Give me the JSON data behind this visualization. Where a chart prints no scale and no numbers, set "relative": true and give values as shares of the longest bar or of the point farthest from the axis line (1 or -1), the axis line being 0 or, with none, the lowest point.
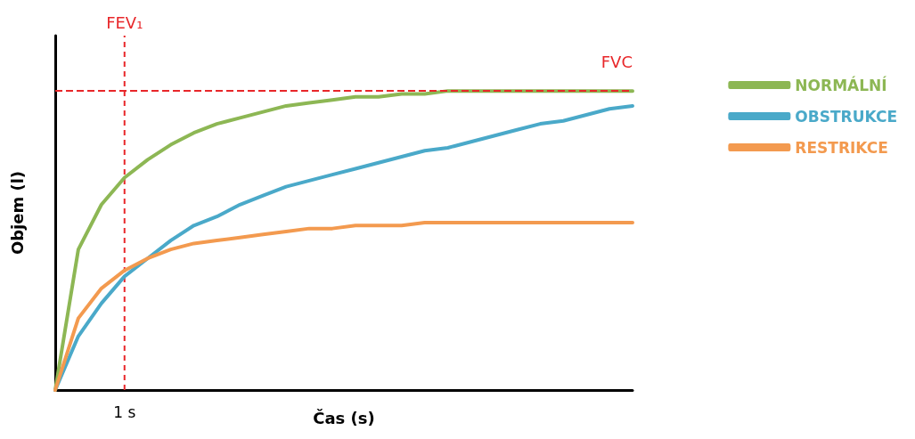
{
  "chart_data": {
    "type": "line",
    "relative": true,
    "xlabel": "Čas (s)",
    "ylabel": "Objem (l)",
    "grid": false,
    "legend": "right",
    "marker": "none",
    "line_style": "solid",
    "annotations": [
      "FEV₁",
      "1 s"
    ],
    "categories": [
      null,
      null,
      null,
      null,
      null,
      null,
      null,
      null,
      null,
      null,
      null,
      null,
      null,
      null,
      null,
      null,
      null,
      null,
      null,
      null,
      null,
      null,
      null,
      null,
      null,
      null
    ],
    "series": [
      {
        "name": "NORMÁLNÍ",
        "color": "#8db754",
        "values": [
          0,
          0.47,
          0.62,
          0.71,
          0.77,
          0.82,
          0.86,
          0.89,
          0.91,
          0.93,
          0.95,
          0.96,
          0.97,
          0.98,
          0.98,
          0.99,
          0.99,
          1,
          1,
          1,
          1,
          1,
          1,
          1,
          1,
          1
        ]
      },
      {
        "name": "OBSTRUKCE",
        "color": "#4aa9c9",
        "values": [
          0,
          0.18,
          0.29,
          0.38,
          0.44,
          0.5,
          0.55,
          0.58,
          0.62,
          0.65,
          0.68,
          0.7,
          0.72,
          0.74,
          0.76,
          0.78,
          0.8,
          0.81,
          0.83,
          0.85,
          0.87,
          0.89,
          0.9,
          0.92,
          0.94,
          0.95
        ]
      },
      {
        "name": "RESTRIKCE",
        "color": "#f39a4f",
        "values": [
          0,
          0.24,
          0.34,
          0.4,
          0.44,
          0.47,
          0.49,
          0.5,
          0.51,
          0.52,
          0.53,
          0.54,
          0.54,
          0.55,
          0.55,
          0.55,
          0.56,
          0.56,
          0.56,
          0.56,
          0.56,
          0.56,
          0.56,
          0.56,
          0.56,
          0.56
        ]
      }
    ],
    "ref_lines": [
      {
        "axis": "y",
        "value": 1,
        "label": "FVC",
        "color": "#e8272a",
        "line_style": "dashed"
      }
    ]
  }
}
